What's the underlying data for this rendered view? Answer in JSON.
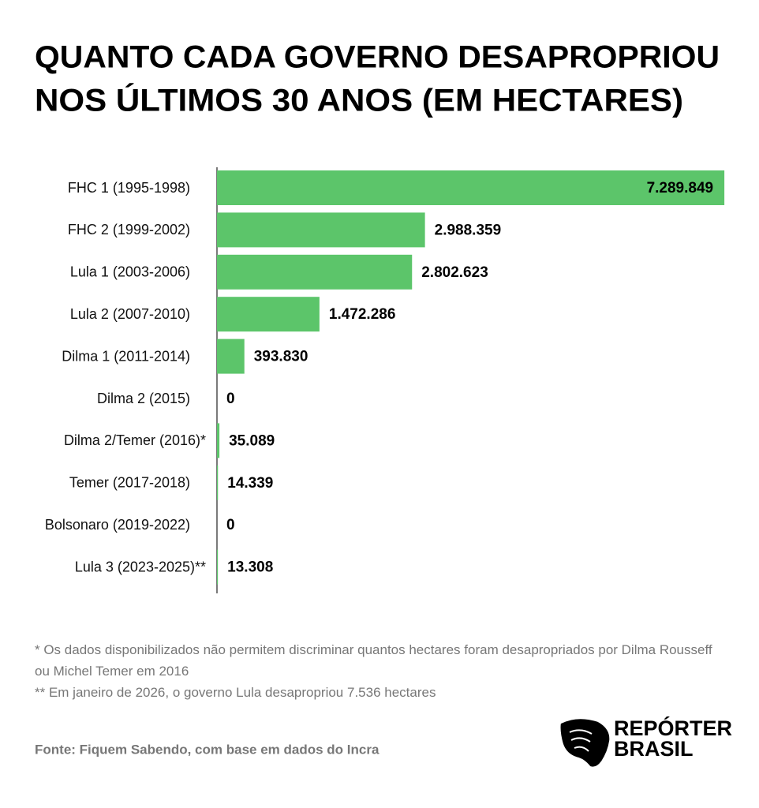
{
  "chart_data": {
    "type": "bar",
    "orientation": "horizontal",
    "title": [
      "QUANTO CADA GOVERNO DESAPROPRIOU",
      "NOS ÚLTIMOS 30 ANOS (EM HECTARES)"
    ],
    "categories": [
      "FHC 1 (1995-1998)",
      "FHC 2 (1999-2002)",
      "Lula 1 (2003-2006)",
      "Lula 2 (2007-2010)",
      "Dilma 1 (2011-2014)",
      "Dilma 2 (2015)",
      "Dilma 2/Temer (2016)*",
      "Temer (2017-2018)",
      "Bolsonaro (2019-2022)",
      "Lula 3 (2023-2025)**"
    ],
    "values": [
      7289849,
      2988359,
      2802623,
      1472286,
      393830,
      0,
      35089,
      14339,
      0,
      13308
    ],
    "value_labels": [
      "7.289.849",
      "2.988.359",
      "2.802.623",
      "1.472.286",
      "393.830",
      "0",
      "35.089",
      "14.339",
      "0",
      "13.308"
    ],
    "color": "#5cc56a",
    "xlim": [
      0,
      7300000
    ],
    "notes": [
      "* Os dados disponibilizados não permitem discriminar quantos hectares foram desapropriados por Dilma Rousseff ou Michel Temer em 2016",
      "** Em janeiro de 2026, o governo Lula desapropriou 7.536 hectares"
    ],
    "source": "Fonte: Fiquem Sabendo, com base em dados do Incra",
    "logo": [
      "REPÓRTER",
      "BRASIL"
    ]
  }
}
